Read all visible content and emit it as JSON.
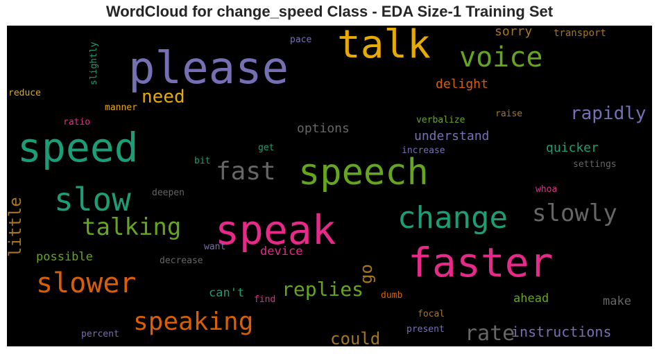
{
  "title": "WordCloud for change_speed Class - EDA Size-1 Training Set",
  "palette": {
    "teal": "#1b9e77",
    "orange": "#d95f02",
    "purple": "#7570b3",
    "magenta": "#e7298a",
    "green": "#66a61e",
    "gold": "#e6ab02",
    "brown": "#a6761d",
    "gray": "#666666"
  },
  "words": [
    {
      "text": "please",
      "color": "purple"
    },
    {
      "text": "talk",
      "color": "gold"
    },
    {
      "text": "voice",
      "color": "green"
    },
    {
      "text": "speed",
      "color": "teal"
    },
    {
      "text": "speech",
      "color": "green"
    },
    {
      "text": "speak",
      "color": "magenta"
    },
    {
      "text": "faster",
      "color": "magenta"
    },
    {
      "text": "slow",
      "color": "teal"
    },
    {
      "text": "change",
      "color": "teal"
    },
    {
      "text": "slower",
      "color": "orange"
    },
    {
      "text": "speaking",
      "color": "orange"
    },
    {
      "text": "fast",
      "color": "gray"
    },
    {
      "text": "slowly",
      "color": "gray"
    },
    {
      "text": "talking",
      "color": "green"
    },
    {
      "text": "need",
      "color": "gold"
    },
    {
      "text": "rapidly",
      "color": "purple"
    },
    {
      "text": "rate",
      "color": "gray"
    },
    {
      "text": "replies",
      "color": "green"
    },
    {
      "text": "could",
      "color": "brown"
    },
    {
      "text": "instructions",
      "color": "purple"
    },
    {
      "text": "little",
      "color": "brown"
    },
    {
      "text": "go",
      "color": "brown"
    },
    {
      "text": "understand",
      "color": "purple"
    },
    {
      "text": "quicker",
      "color": "teal"
    },
    {
      "text": "delight",
      "color": "orange"
    },
    {
      "text": "options",
      "color": "gray"
    },
    {
      "text": "sorry",
      "color": "brown"
    },
    {
      "text": "possible",
      "color": "green"
    },
    {
      "text": "can't",
      "color": "teal"
    },
    {
      "text": "device",
      "color": "magenta"
    },
    {
      "text": "ahead",
      "color": "green"
    },
    {
      "text": "make",
      "color": "gray"
    },
    {
      "text": "transport",
      "color": "brown"
    },
    {
      "text": "pace",
      "color": "purple"
    },
    {
      "text": "slightly",
      "color": "teal"
    },
    {
      "text": "reduce",
      "color": "gold"
    },
    {
      "text": "manner",
      "color": "gold"
    },
    {
      "text": "ratio",
      "color": "magenta"
    },
    {
      "text": "verbalize",
      "color": "green"
    },
    {
      "text": "raise",
      "color": "brown"
    },
    {
      "text": "get",
      "color": "teal"
    },
    {
      "text": "increase",
      "color": "purple"
    },
    {
      "text": "bit",
      "color": "teal"
    },
    {
      "text": "settings",
      "color": "gray"
    },
    {
      "text": "deepen",
      "color": "gray"
    },
    {
      "text": "whoa",
      "color": "magenta"
    },
    {
      "text": "want",
      "color": "purple"
    },
    {
      "text": "decrease",
      "color": "gray"
    },
    {
      "text": "dumb",
      "color": "orange"
    },
    {
      "text": "find",
      "color": "magenta"
    },
    {
      "text": "focal",
      "color": "brown"
    },
    {
      "text": "present",
      "color": "purple"
    },
    {
      "text": "percent",
      "color": "purple"
    }
  ]
}
